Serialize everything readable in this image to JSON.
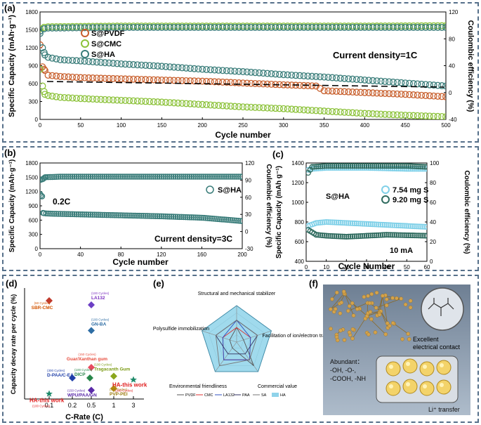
{
  "colors": {
    "pvdf": "#c8602e",
    "cmc": "#8cc23a",
    "ha": "#3a7d7a",
    "ha_light": "#7fd0e8",
    "ha_dark": "#2f6b5f",
    "frame": "#56708a",
    "radar_fill": "#8fd3ea",
    "dash": "#000000"
  },
  "chart_data": [
    {
      "id": "a",
      "type": "scatter",
      "panel_label": "(a)",
      "xlabel": "Cycle number",
      "ylabel": "Specific Capacity (mAh·g⁻¹)",
      "y2label": "Coulombic efficiency (%)",
      "xlim": [
        0,
        500
      ],
      "ylim": [
        0,
        1800
      ],
      "y2lim": [
        -40,
        120
      ],
      "xticks": [
        0,
        50,
        100,
        150,
        200,
        250,
        300,
        350,
        400,
        450,
        500
      ],
      "yticks": [
        0,
        300,
        600,
        900,
        1200,
        1500,
        1800
      ],
      "y2ticks": [
        -40,
        0,
        40,
        80,
        120
      ],
      "annotation": "Current density=1C",
      "legend": [
        "S@PVDF",
        "S@CMC",
        "S@HA"
      ],
      "series": [
        {
          "name": "S@PVDF capacity",
          "color_key": "pvdf",
          "x": [
            0,
            3,
            6,
            10,
            25,
            50,
            100,
            150,
            200,
            250,
            300,
            340,
            350,
            400,
            450,
            500
          ],
          "y": [
            1250,
            880,
            820,
            740,
            720,
            700,
            680,
            660,
            640,
            610,
            580,
            560,
            480,
            450,
            420,
            380
          ]
        },
        {
          "name": "S@CMC capacity",
          "color_key": "cmc",
          "x": [
            0,
            3,
            6,
            10,
            25,
            50,
            100,
            150,
            200,
            250,
            300,
            350,
            400,
            450,
            500
          ],
          "y": [
            840,
            560,
            420,
            400,
            370,
            350,
            320,
            290,
            250,
            210,
            180,
            140,
            100,
            70,
            45
          ]
        },
        {
          "name": "S@HA capacity",
          "color_key": "ha",
          "x": [
            0,
            3,
            6,
            10,
            25,
            50,
            100,
            150,
            200,
            250,
            300,
            350,
            400,
            450,
            500
          ],
          "y": [
            1480,
            1200,
            1080,
            1040,
            1000,
            980,
            930,
            890,
            840,
            800,
            750,
            710,
            660,
            610,
            560
          ]
        },
        {
          "name": "S@CMC efficiency",
          "color_key": "cmc",
          "axis": "right",
          "x": [
            0,
            5,
            10,
            100,
            200,
            300,
            400,
            500
          ],
          "y": [
            95,
            97,
            98,
            99,
            99,
            99,
            99,
            99.5
          ]
        },
        {
          "name": "S@HA efficiency",
          "color_key": "ha",
          "axis": "right",
          "x": [
            0,
            5,
            10,
            100,
            200,
            300,
            400,
            500
          ],
          "y": [
            88,
            95,
            96,
            97,
            97,
            97,
            97,
            97
          ]
        }
      ]
    },
    {
      "id": "b",
      "type": "scatter",
      "panel_label": "(b)",
      "xlabel": "Cycle number",
      "ylabel": "Specific Capacity (mAh·g⁻¹)",
      "y2label": "Coulombic efficiency (%)",
      "xlim": [
        0,
        200
      ],
      "ylim": [
        0,
        1800
      ],
      "y2lim": [
        -30,
        120
      ],
      "xticks": [
        0,
        40,
        80,
        120,
        160,
        200
      ],
      "yticks": [
        0,
        300,
        600,
        900,
        1200,
        1500,
        1800
      ],
      "y2ticks": [
        -30,
        0,
        30,
        60,
        90,
        120
      ],
      "annotations": [
        "0.2C",
        "Current density=3C"
      ],
      "legend": [
        "S@HA"
      ],
      "series": [
        {
          "name": "S@HA capacity",
          "color_key": "ha",
          "x": [
            0,
            1,
            2,
            3,
            5,
            10,
            20,
            40,
            80,
            120,
            160,
            200
          ],
          "y": [
            1150,
            1120,
            1100,
            750,
            740,
            735,
            730,
            720,
            700,
            680,
            650,
            580
          ]
        },
        {
          "name": "S@HA efficiency",
          "color_key": "ha",
          "axis": "right",
          "x": [
            0,
            3,
            5,
            20,
            60,
            100,
            140,
            180,
            200
          ],
          "y": [
            90,
            92,
            95,
            96,
            96,
            96,
            96,
            96,
            96
          ]
        }
      ]
    },
    {
      "id": "c",
      "type": "scatter",
      "panel_label": "(c)",
      "xlabel": "Cycle Number",
      "ylabel": "Specific Capacity (mAh g⁻¹)",
      "y2label": "Coulombic efficiency (%)",
      "xlim": [
        0,
        60
      ],
      "ylim": [
        400,
        1400
      ],
      "y2lim": [
        0,
        100
      ],
      "xticks": [
        0,
        10,
        20,
        30,
        40,
        50,
        60
      ],
      "yticks": [
        400,
        600,
        800,
        1000,
        1200,
        1400
      ],
      "y2ticks": [
        0,
        20,
        40,
        60,
        80,
        100
      ],
      "annotations": [
        "S@HA",
        "10 mA"
      ],
      "legend": [
        "7.54 mg S",
        "9.20 mg S"
      ],
      "series": [
        {
          "name": "7.54 mg S capacity",
          "color_key": "ha_light",
          "x": [
            1,
            5,
            10,
            20,
            30,
            40,
            50,
            60
          ],
          "y": [
            760,
            790,
            800,
            790,
            780,
            770,
            760,
            750
          ]
        },
        {
          "name": "9.20 mg S capacity",
          "color_key": "ha_dark",
          "x": [
            1,
            5,
            10,
            20,
            30,
            40,
            50,
            60
          ],
          "y": [
            720,
            670,
            660,
            650,
            660,
            670,
            665,
            660
          ]
        },
        {
          "name": "7.54 mg S efficiency",
          "color_key": "ha_light",
          "axis": "right",
          "x": [
            1,
            3,
            10,
            30,
            50,
            60
          ],
          "y": [
            93,
            94,
            95,
            95,
            94,
            94
          ]
        },
        {
          "name": "9.20 mg S efficiency",
          "color_key": "ha_dark",
          "axis": "right",
          "x": [
            1,
            3,
            10,
            30,
            50,
            60
          ],
          "y": [
            90,
            96,
            97,
            97,
            97,
            96
          ]
        }
      ]
    },
    {
      "id": "d",
      "type": "scatter",
      "panel_label": "(d)",
      "xlabel": "C-Rate (C)",
      "ylabel": "Capacity decay rate per cycle (%)",
      "xticks": [
        "0.1",
        "0.2",
        "0.5",
        "1",
        "3"
      ],
      "points": [
        {
          "name": "SBR-CMC",
          "cycles": "(60 Cycles)",
          "x": 0.1,
          "y": 0.56,
          "color": "#c0392b",
          "label_color": "#d35400"
        },
        {
          "name": "LA132",
          "cycles": "(100 Cycles)",
          "x": 0.5,
          "y": 0.48,
          "color": "#6c3fc4",
          "label_color": "#7b2fbf"
        },
        {
          "name": "GN-BA",
          "cycles": "(100 Cycles)",
          "x": 0.5,
          "y": 0.39,
          "color": "#2e6da4",
          "label_color": "#2e6da4"
        },
        {
          "name": "Guar/Xanthan gum",
          "cycles": "(150 Cycles)",
          "x": 0.5,
          "y": 0.18,
          "color": "#e84a5f",
          "label_color": "#e74c3c"
        },
        {
          "name": "Tragacanth Gum",
          "cycles": "(100 Cycles)",
          "x": 1,
          "y": 0.13,
          "color": "#8aa61d",
          "label_color": "#7a9a12"
        },
        {
          "name": "DICP",
          "cycles": "(100 Cycles)",
          "x": 0.5,
          "y": 0.12,
          "color": "#27864a",
          "label_color": "#27864a"
        },
        {
          "name": "D-PAA/C-EA",
          "cycles": "(300 Cycles)",
          "x": 0.2,
          "y": 0.12,
          "color": "#1f3fa8",
          "label_color": "#1f3fa8"
        },
        {
          "name": "WPU/PAA/GN",
          "cycles": "(150 Cycles)",
          "x": 0.5,
          "y": 0.05,
          "color": "#5a2aa8",
          "label_color": "#5a2aa8"
        },
        {
          "name": "PVP-PEI",
          "cycles": "(400 Cycles)",
          "x": 1,
          "y": 0.06,
          "color": "#b38a12",
          "label_color": "#9a7a0c"
        },
        {
          "name": "HA-this work",
          "cycles": "(100 Cycles)",
          "x": 0.1,
          "y": 0.03,
          "color": "#1e8a6a",
          "label_color": "#e02020"
        },
        {
          "name": "HA-this work",
          "cycles": "(200 Cycles)",
          "x": 3,
          "y": 0.11,
          "color": "#1e8a6a",
          "label_color": "#e02020"
        }
      ]
    },
    {
      "id": "e",
      "type": "radar",
      "panel_label": "(e)",
      "axes": [
        "Structural and mechanical stabilizer",
        "Facilitation of ion/electron transport",
        "Commercial value",
        "Environmental friendliness",
        "Polysulfide immobilization"
      ],
      "legend": [
        "PVDF",
        "CMC",
        "LA132",
        "PAA",
        "SA",
        "HA"
      ],
      "series": [
        {
          "name": "PVDF",
          "values": [
            2,
            1,
            4,
            1,
            1
          ],
          "color": "#555555"
        },
        {
          "name": "CMC",
          "values": [
            2,
            2,
            3,
            3,
            2
          ],
          "color": "#e03030"
        },
        {
          "name": "LA132",
          "values": [
            3,
            2,
            3,
            3,
            2
          ],
          "color": "#3050c0"
        },
        {
          "name": "PAA",
          "values": [
            3,
            3,
            2,
            2,
            3
          ],
          "color": "#303060"
        },
        {
          "name": "SA",
          "values": [
            3,
            3,
            3,
            4,
            3
          ],
          "color": "#777777"
        },
        {
          "name": "HA",
          "values": [
            5,
            5,
            5,
            5,
            5
          ],
          "color": "#3a8aa8"
        }
      ]
    }
  ],
  "panel_f": {
    "label": "(f)",
    "contact_text": [
      "Excellent",
      "electrical contact"
    ],
    "groups_text": [
      "Abundant：",
      "-OH, -O-,",
      "-COOH,  -NH"
    ],
    "transfer_text": "Li⁺ transfer"
  }
}
